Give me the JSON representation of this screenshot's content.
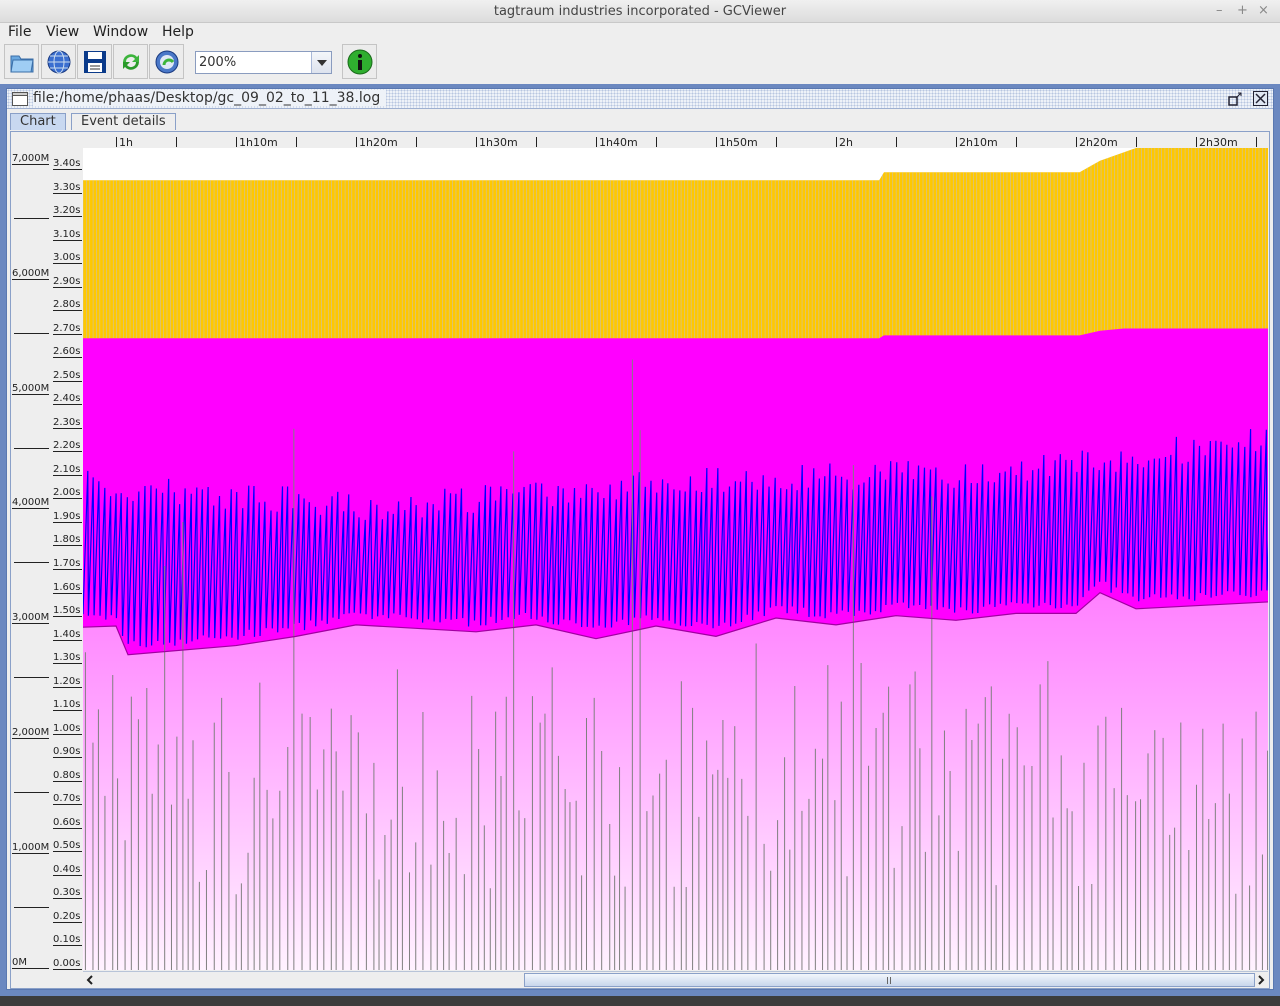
{
  "window": {
    "title": "tagtraum industries incorporated - GCViewer"
  },
  "menu": [
    "File",
    "View",
    "Window",
    "Help"
  ],
  "toolbar": {
    "buttons": [
      "open-file-icon",
      "open-url-icon",
      "export-icon",
      "refresh-icon",
      "watch-icon"
    ],
    "zoom_value": "200%",
    "info_button": "info-icon"
  },
  "document": {
    "title": "file:/home/phaas/Desktop/gc_09_02_to_11_38.log"
  },
  "tabs": [
    {
      "label": "Chart",
      "active": true
    },
    {
      "label": "Event details",
      "active": false
    }
  ],
  "chart_data": {
    "type": "area",
    "x_ticks": [
      "1h",
      "1h10m",
      "1h20m",
      "1h30m",
      "1h40m",
      "1h50m",
      "2h",
      "2h10m",
      "2h20m",
      "2h30m"
    ],
    "xlim_minutes": [
      57.25,
      156
    ],
    "memory_ticks": [
      "7,000M",
      "6,000M",
      "5,000M",
      "4,000M",
      "3,000M",
      "2,000M",
      "1,000M",
      "0M"
    ],
    "pause_ticks": [
      "3.40s",
      "3.30s",
      "3.20s",
      "3.10s",
      "3.00s",
      "2.90s",
      "2.80s",
      "2.70s",
      "2.60s",
      "2.50s",
      "2.40s",
      "2.30s",
      "2.20s",
      "2.10s",
      "2.00s",
      "1.90s",
      "1.80s",
      "1.70s",
      "1.60s",
      "1.50s",
      "1.40s",
      "1.30s",
      "1.20s",
      "1.10s",
      "1.00s",
      "0.90s",
      "0.80s",
      "0.70s",
      "0.60s",
      "0.50s",
      "0.40s",
      "0.30s",
      "0.20s",
      "0.10s",
      "0.00s"
    ],
    "memory_ylim_M": [
      0,
      7113
    ],
    "pause_ylim_s": [
      0,
      3.49
    ],
    "series": [
      {
        "key": "total_heap",
        "color": "#ffc800",
        "points_min_M": [
          [
            57.25,
            6830
          ],
          [
            123.6,
            6830
          ],
          [
            124,
            6900
          ],
          [
            140.3,
            6900
          ],
          [
            142,
            7000
          ],
          [
            145,
            7110
          ],
          [
            156,
            7110
          ]
        ]
      },
      {
        "key": "tenured",
        "color": "#ff00ff",
        "points_min_M": [
          [
            57.25,
            5455
          ],
          [
            123.6,
            5455
          ],
          [
            124,
            5480
          ],
          [
            140.3,
            5480
          ],
          [
            142,
            5520
          ],
          [
            144,
            5540
          ],
          [
            156,
            5540
          ]
        ]
      },
      {
        "key": "used_tenured",
        "color": "#a000a0",
        "points_min_M": [
          [
            57.25,
            2940
          ],
          [
            60,
            2950
          ],
          [
            61,
            2700
          ],
          [
            70,
            2780
          ],
          [
            75,
            2860
          ],
          [
            80,
            2960
          ],
          [
            90,
            2900
          ],
          [
            95,
            2960
          ],
          [
            100,
            2840
          ],
          [
            105,
            2950
          ],
          [
            110,
            2860
          ],
          [
            115,
            3020
          ],
          [
            120,
            2960
          ],
          [
            125,
            3040
          ],
          [
            130,
            3000
          ],
          [
            135,
            3060
          ],
          [
            140,
            3060
          ],
          [
            142,
            3240
          ],
          [
            145,
            3100
          ],
          [
            156,
            3160
          ]
        ]
      },
      {
        "key": "used_heap",
        "color": "#0000ff",
        "peak_M": [
          4300,
          4100,
          4350,
          4400,
          4700
        ],
        "low_M": [
          2950,
          2700,
          2850,
          3000,
          3150
        ]
      },
      {
        "key": "gc_pauses",
        "color": "#808080",
        "max_s": 2.8
      }
    ],
    "grid": false,
    "legend": "none"
  }
}
